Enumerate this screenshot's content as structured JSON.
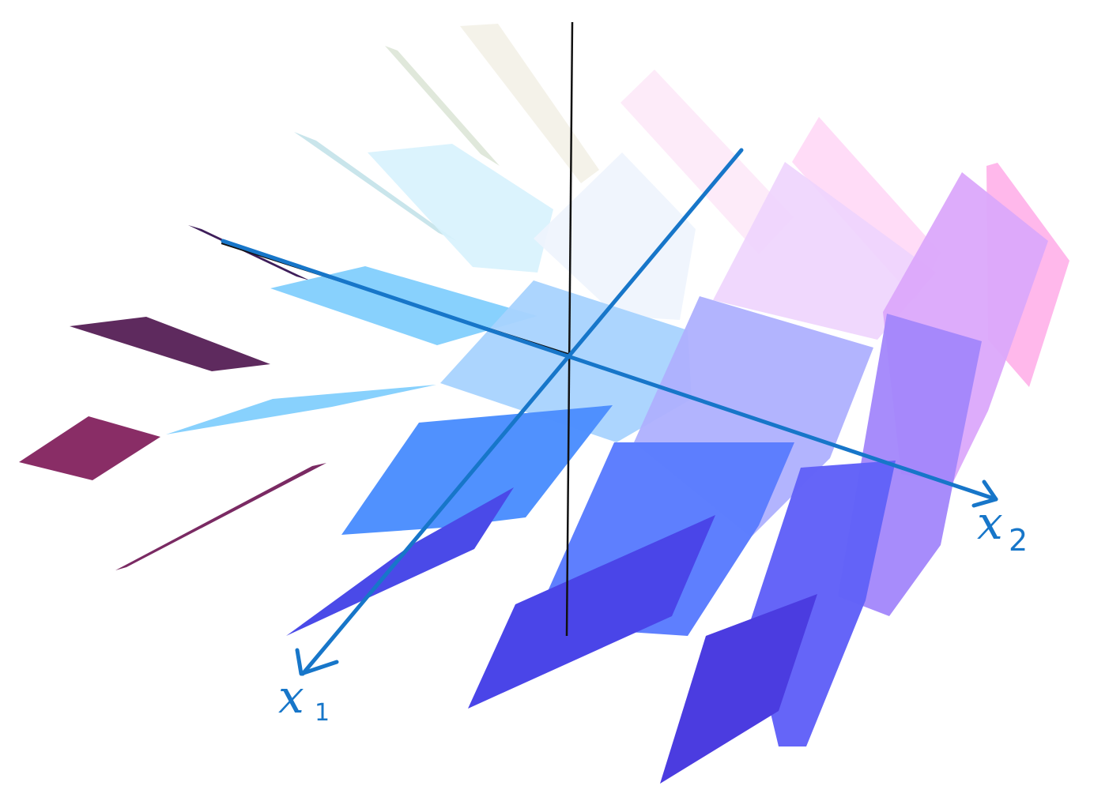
{
  "figure": {
    "description_free": true,
    "colors": {
      "background": "#ffffff",
      "axis_annotation": "#1776c9",
      "vertical_axis": "#111111"
    },
    "labels": {
      "x1": {
        "base": "x",
        "sub": "1"
      },
      "x2": {
        "base": "x",
        "sub": "2"
      }
    },
    "plane_colors": [
      "#f3f1e7",
      "#dde6d7",
      "#fde9f8",
      "#ffd8f6",
      "#ffb4ea",
      "#c6e4ea",
      "#d7f2fd",
      "#eef4fd",
      "#eed4fd",
      "#dba8fb",
      "#3e1e5a",
      "#82cffd",
      "#a8d3fe",
      "#aeb0fe",
      "#a286fb",
      "#5e2a5e",
      "#4c8ffe",
      "#5b7cfe",
      "#6262f8",
      "#892d66",
      "#7a2a63",
      "#4a4ae8",
      "#4a45e8",
      "#4b3ce0"
    ]
  }
}
